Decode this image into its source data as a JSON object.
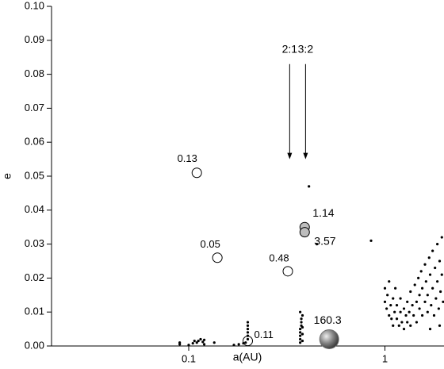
{
  "chart_data": {
    "type": "scatter",
    "xlabel": "a(AU)",
    "ylabel": "e",
    "xscale": "log",
    "xlim": [
      0.02,
      2
    ],
    "xticks": [
      0.1,
      1
    ],
    "ylim": [
      0,
      0.1
    ],
    "yticks": [
      {
        "value": 0,
        "label": "0.00"
      },
      {
        "value": 0.01,
        "label": "0.01"
      },
      {
        "value": 0.02,
        "label": "0.02"
      },
      {
        "value": 0.03,
        "label": "0.03"
      },
      {
        "value": 0.04,
        "label": "0.04"
      },
      {
        "value": 0.05,
        "label": "0.05"
      },
      {
        "value": 0.06,
        "label": "0.06"
      },
      {
        "value": 0.07,
        "label": "0.07"
      },
      {
        "value": 0.08,
        "label": "0.08"
      },
      {
        "value": 0.09,
        "label": "0.09"
      },
      {
        "value": 0.1,
        "label": "0.10"
      }
    ],
    "series": [
      {
        "marker": "circle",
        "color": "#ffffff",
        "x": [
          0.11,
          0.14,
          0.32,
          0.2
        ],
        "values": [
          0.051,
          0.026,
          0.022,
          0.0015
        ],
        "labels": [
          "0.13",
          "0.05",
          "0.48",
          "0.11"
        ]
      },
      {
        "marker": "circle",
        "color": "#bdbdbd",
        "x": [
          0.39,
          0.39
        ],
        "values": [
          0.035,
          0.0335
        ],
        "labels": [
          "1.14",
          "3.57"
        ]
      },
      {
        "marker": "sphere",
        "color": "#6e6e6e",
        "x": [
          0.52
        ],
        "values": [
          0.002
        ],
        "labels": [
          "160.3"
        ]
      },
      {
        "marker": "dot",
        "color": "#000000",
        "x": [
          0.09,
          0.09,
          0.1,
          0.105,
          0.107,
          0.11,
          0.112,
          0.115,
          0.118,
          0.12,
          0.12,
          0.135,
          0.17,
          0.18,
          0.19,
          0.195,
          0.2,
          0.2,
          0.2,
          0.2,
          0.2,
          0.2,
          0.37,
          0.37,
          0.37,
          0.37,
          0.37,
          0.375,
          0.375,
          0.375,
          0.38,
          0.37,
          0.38,
          0.38,
          0.38,
          0.41,
          0.45,
          0.85,
          1.0,
          1.0,
          1.02,
          1.03,
          1.05,
          1.05,
          1.07,
          1.08,
          1.1,
          1.1,
          1.12,
          1.13,
          1.15,
          1.15,
          1.18,
          1.2,
          1.2,
          1.22,
          1.25,
          1.25,
          1.28,
          1.3,
          1.3,
          1.33,
          1.35,
          1.35,
          1.38,
          1.4,
          1.42,
          1.45,
          1.45,
          1.48,
          1.5,
          1.5,
          1.53,
          1.55,
          1.55,
          1.6,
          1.6,
          1.62,
          1.65,
          1.65,
          1.68,
          1.7,
          1.72,
          1.75,
          1.75,
          1.78,
          1.8,
          1.82,
          1.85,
          1.85,
          1.88,
          1.9,
          1.92,
          1.95,
          1.95,
          1.98,
          1.7,
          1.9
        ],
        "values": [
          0.0005,
          0.001,
          0.0003,
          0.0008,
          0.0015,
          0.001,
          0.0015,
          0.002,
          0.0012,
          0.0018,
          0.0005,
          0.001,
          0.0003,
          0.0005,
          0.0008,
          0.001,
          0.002,
          0.003,
          0.004,
          0.005,
          0.006,
          0.007,
          0.001,
          0.002,
          0.003,
          0.004,
          0.005,
          0.006,
          0.007,
          0.008,
          0.009,
          0.01,
          0.0015,
          0.0035,
          0.0055,
          0.047,
          0.03,
          0.031,
          0.017,
          0.013,
          0.011,
          0.015,
          0.009,
          0.019,
          0.012,
          0.008,
          0.014,
          0.006,
          0.01,
          0.017,
          0.008,
          0.012,
          0.006,
          0.01,
          0.014,
          0.007,
          0.011,
          0.005,
          0.009,
          0.013,
          0.007,
          0.01,
          0.016,
          0.006,
          0.012,
          0.009,
          0.018,
          0.013,
          0.007,
          0.02,
          0.011,
          0.015,
          0.022,
          0.009,
          0.017,
          0.013,
          0.024,
          0.019,
          0.01,
          0.015,
          0.026,
          0.021,
          0.012,
          0.017,
          0.028,
          0.009,
          0.023,
          0.014,
          0.019,
          0.03,
          0.011,
          0.025,
          0.016,
          0.021,
          0.032,
          0.013,
          0.005,
          0.006
        ]
      }
    ],
    "annotations": [
      {
        "text": "2:1",
        "x": 0.327,
        "y_start": 0.083,
        "y_end": 0.055
      },
      {
        "text": "3:2",
        "x": 0.394,
        "y_start": 0.083,
        "y_end": 0.055
      }
    ]
  }
}
